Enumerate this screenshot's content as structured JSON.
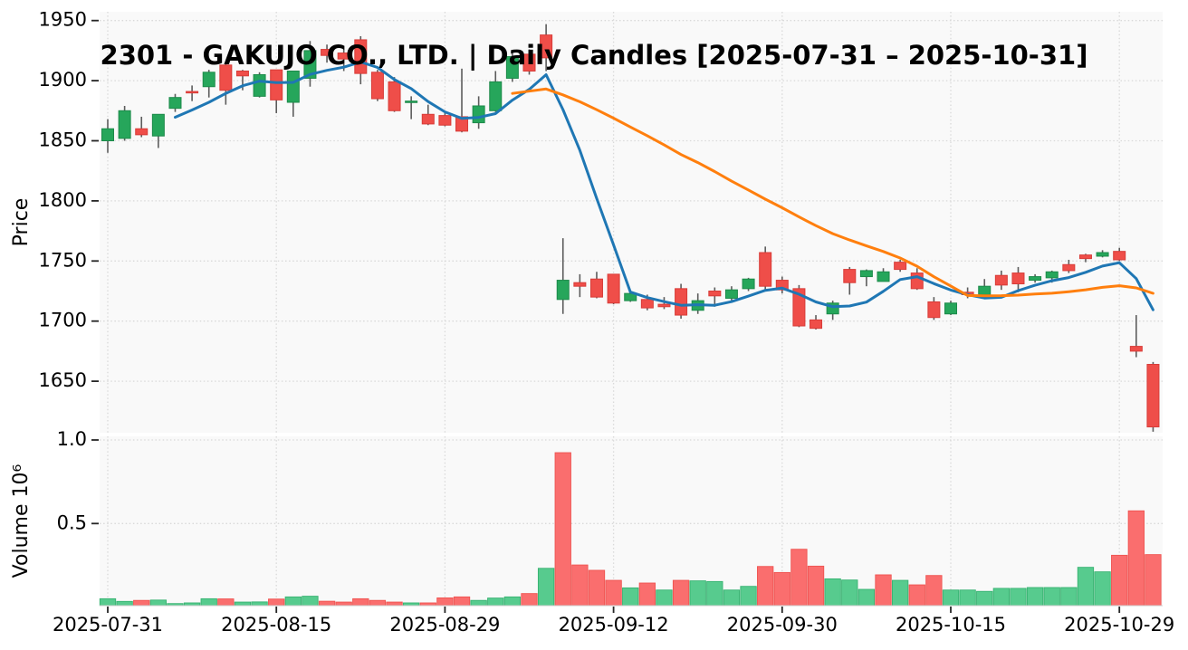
{
  "chart_data": {
    "type": "candlestick",
    "title": "2301 - GAKUJO CO., LTD. | Daily Candles [2025-07-31 – 2025-10-31]",
    "price_axis": {
      "label": "Price",
      "ticks": [
        1950,
        1900,
        1850,
        1800,
        1750,
        1700,
        1650
      ],
      "range": [
        1607,
        1957
      ]
    },
    "volume_axis": {
      "label": "Volume 10⁶",
      "tick_labels": [
        "1.0",
        "0.5"
      ],
      "ticks": [
        1.0,
        0.5
      ],
      "range": [
        0,
        1.02
      ]
    },
    "x_axis": {
      "tick_indices": [
        0,
        10,
        20,
        30,
        40,
        50,
        60
      ],
      "tick_labels": [
        "2025-07-31",
        "2025-08-15",
        "2025-08-29",
        "2025-09-12",
        "2025-09-30",
        "2025-10-15",
        "2025-10-29"
      ]
    },
    "grid": true,
    "legend_position": "none",
    "overlays": [
      {
        "name": "SMA(5)",
        "window": 5,
        "color_key": "sma_fast"
      },
      {
        "name": "SMA(25)",
        "window": 25,
        "color_key": "sma_slow"
      }
    ],
    "dates": [
      "2025-07-31",
      "2025-08-01",
      "2025-08-04",
      "2025-08-05",
      "2025-08-06",
      "2025-08-07",
      "2025-08-08",
      "2025-08-12",
      "2025-08-13",
      "2025-08-14",
      "2025-08-15",
      "2025-08-18",
      "2025-08-19",
      "2025-08-20",
      "2025-08-21",
      "2025-08-22",
      "2025-08-25",
      "2025-08-26",
      "2025-08-27",
      "2025-08-28",
      "2025-08-29",
      "2025-09-01",
      "2025-09-02",
      "2025-09-03",
      "2025-09-04",
      "2025-09-05",
      "2025-09-08",
      "2025-09-09",
      "2025-09-10",
      "2025-09-11",
      "2025-09-12",
      "2025-09-16",
      "2025-09-17",
      "2025-09-18",
      "2025-09-19",
      "2025-09-22",
      "2025-09-24",
      "2025-09-25",
      "2025-09-26",
      "2025-09-29",
      "2025-09-30",
      "2025-10-01",
      "2025-10-02",
      "2025-10-03",
      "2025-10-06",
      "2025-10-07",
      "2025-10-08",
      "2025-10-09",
      "2025-10-10",
      "2025-10-14",
      "2025-10-15",
      "2025-10-16",
      "2025-10-17",
      "2025-10-20",
      "2025-10-21",
      "2025-10-22",
      "2025-10-23",
      "2025-10-24",
      "2025-10-27",
      "2025-10-28",
      "2025-10-29",
      "2025-10-30",
      "2025-10-31"
    ],
    "ohlc": [
      [
        1850,
        1868,
        1840,
        1860
      ],
      [
        1852,
        1879,
        1850,
        1875
      ],
      [
        1860,
        1870,
        1853,
        1855
      ],
      [
        1854,
        1872,
        1844,
        1872
      ],
      [
        1877,
        1889,
        1874,
        1886
      ],
      [
        1891,
        1896,
        1883,
        1890
      ],
      [
        1895,
        1909,
        1886,
        1907
      ],
      [
        1913,
        1916,
        1880,
        1892
      ],
      [
        1908,
        1909,
        1892,
        1904
      ],
      [
        1887,
        1907,
        1886,
        1905
      ],
      [
        1909,
        1909,
        1873,
        1884
      ],
      [
        1882,
        1908,
        1870,
        1908
      ],
      [
        1902,
        1933,
        1895,
        1925
      ],
      [
        1926,
        1930,
        1915,
        1921
      ],
      [
        1923,
        1929,
        1908,
        1918
      ],
      [
        1934,
        1937,
        1897,
        1906
      ],
      [
        1907,
        1909,
        1883,
        1885
      ],
      [
        1899,
        1903,
        1874,
        1875
      ],
      [
        1882,
        1887,
        1868,
        1883
      ],
      [
        1872,
        1880,
        1863,
        1864
      ],
      [
        1871,
        1873,
        1862,
        1863
      ],
      [
        1870,
        1910,
        1857,
        1858
      ],
      [
        1865,
        1887,
        1860,
        1879
      ],
      [
        1875,
        1908,
        1874,
        1899
      ],
      [
        1902,
        1924,
        1899,
        1920
      ],
      [
        1922,
        1926,
        1905,
        1908
      ],
      [
        1938,
        1947,
        1908,
        1919
      ],
      [
        1718,
        1769,
        1706,
        1734
      ],
      [
        1732,
        1739,
        1720,
        1729
      ],
      [
        1735,
        1741,
        1719,
        1720
      ],
      [
        1739,
        1739,
        1714,
        1715
      ],
      [
        1717,
        1725,
        1716,
        1723
      ],
      [
        1718,
        1722,
        1709,
        1711
      ],
      [
        1714,
        1720,
        1710,
        1712
      ],
      [
        1727,
        1731,
        1702,
        1705
      ],
      [
        1709,
        1723,
        1706,
        1717
      ],
      [
        1725,
        1728,
        1712,
        1721
      ],
      [
        1719,
        1729,
        1716,
        1726
      ],
      [
        1727,
        1736,
        1725,
        1735
      ],
      [
        1757,
        1762,
        1726,
        1729
      ],
      [
        1734,
        1737,
        1723,
        1726
      ],
      [
        1727,
        1730,
        1695,
        1696
      ],
      [
        1701,
        1705,
        1693,
        1694
      ],
      [
        1706,
        1717,
        1701,
        1715
      ],
      [
        1743,
        1745,
        1722,
        1732
      ],
      [
        1737,
        1743,
        1729,
        1742
      ],
      [
        1733,
        1744,
        1733,
        1741
      ],
      [
        1749,
        1751,
        1741,
        1743
      ],
      [
        1740,
        1744,
        1726,
        1727
      ],
      [
        1716,
        1720,
        1701,
        1703
      ],
      [
        1706,
        1717,
        1705,
        1715
      ],
      [
        1724,
        1728,
        1719,
        1722
      ],
      [
        1722,
        1735,
        1719,
        1729
      ],
      [
        1738,
        1742,
        1726,
        1730
      ],
      [
        1740,
        1745,
        1724,
        1731
      ],
      [
        1734,
        1739,
        1732,
        1737
      ],
      [
        1736,
        1742,
        1732,
        1741
      ],
      [
        1747,
        1751,
        1740,
        1742
      ],
      [
        1755,
        1756,
        1749,
        1752
      ],
      [
        1754,
        1759,
        1753,
        1757
      ],
      [
        1758,
        1761,
        1750,
        1751
      ],
      [
        1679,
        1705,
        1670,
        1675
      ],
      [
        1664,
        1666,
        1608,
        1612
      ]
    ],
    "volume_millions": [
      0.05,
      0.034,
      0.04,
      0.042,
      0.021,
      0.025,
      0.05,
      0.049,
      0.03,
      0.031,
      0.048,
      0.061,
      0.065,
      0.035,
      0.03,
      0.05,
      0.04,
      0.03,
      0.025,
      0.025,
      0.055,
      0.061,
      0.04,
      0.054,
      0.061,
      0.081,
      0.232,
      0.924,
      0.252,
      0.22,
      0.16,
      0.115,
      0.144,
      0.102,
      0.16,
      0.157,
      0.153,
      0.102,
      0.124,
      0.243,
      0.207,
      0.346,
      0.245,
      0.169,
      0.162,
      0.106,
      0.193,
      0.16,
      0.133,
      0.189,
      0.102,
      0.102,
      0.094,
      0.112,
      0.112,
      0.117,
      0.117,
      0.117,
      0.238,
      0.211,
      0.31,
      0.576,
      0.314
    ],
    "colors": {
      "candle_up": "#26a65b",
      "candle_up_border": "#1d8a4a",
      "candle_down": "#ef4e49",
      "candle_down_border": "#d83c38",
      "volume_up": "#57cb8e",
      "volume_up_border": "#37b271",
      "volume_down": "#fa6e6e",
      "volume_down_border": "#ef5350",
      "wick": "#5c5c5c",
      "sma_fast": "#1f77b4",
      "sma_slow": "#ff7f0e",
      "panel_bg": "#f9f9f9",
      "grid": "#d9d9d9",
      "tick": "#262626",
      "text": "#000000",
      "fig_bg": "#ffffff"
    }
  }
}
